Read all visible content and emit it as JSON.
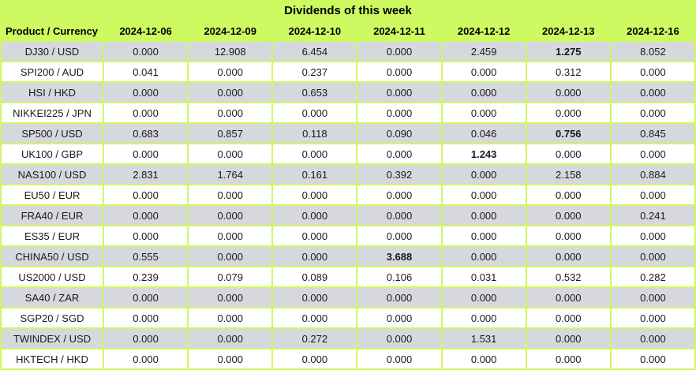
{
  "title": "Dividends of this week",
  "colors": {
    "table_green": "#cdf961",
    "row_gray": "#d7d7de",
    "row_white": "#ffffff",
    "text": "#1a1a1a"
  },
  "chart_data": {
    "type": "table",
    "title": "Dividends of this week",
    "columns": [
      "Product / Currency",
      "2024-12-06",
      "2024-12-09",
      "2024-12-10",
      "2024-12-11",
      "2024-12-12",
      "2024-12-13",
      "2024-12-16"
    ],
    "rows": [
      {
        "product": "DJ30 / USD",
        "values": [
          "0.000",
          "12.908",
          "6.454",
          "0.000",
          "2.459",
          "1.275",
          "8.052"
        ],
        "bold_value_indices": [
          5
        ]
      },
      {
        "product": "SPI200 / AUD",
        "values": [
          "0.041",
          "0.000",
          "0.237",
          "0.000",
          "0.000",
          "0.312",
          "0.000"
        ],
        "bold_value_indices": []
      },
      {
        "product": "HSI / HKD",
        "values": [
          "0.000",
          "0.000",
          "0.653",
          "0.000",
          "0.000",
          "0.000",
          "0.000"
        ],
        "bold_value_indices": []
      },
      {
        "product": "NIKKEI225 / JPN",
        "values": [
          "0.000",
          "0.000",
          "0.000",
          "0.000",
          "0.000",
          "0.000",
          "0.000"
        ],
        "bold_value_indices": []
      },
      {
        "product": "SP500 / USD",
        "values": [
          "0.683",
          "0.857",
          "0.118",
          "0.090",
          "0.046",
          "0.756",
          "0.845"
        ],
        "bold_value_indices": [
          5
        ]
      },
      {
        "product": "UK100 / GBP",
        "values": [
          "0.000",
          "0.000",
          "0.000",
          "0.000",
          "1.243",
          "0.000",
          "0.000"
        ],
        "bold_value_indices": [
          4
        ]
      },
      {
        "product": "NAS100 / USD",
        "values": [
          "2.831",
          "1.764",
          "0.161",
          "0.392",
          "0.000",
          "2.158",
          "0.884"
        ],
        "bold_value_indices": []
      },
      {
        "product": "EU50 / EUR",
        "values": [
          "0.000",
          "0.000",
          "0.000",
          "0.000",
          "0.000",
          "0.000",
          "0.000"
        ],
        "bold_value_indices": []
      },
      {
        "product": "FRA40 / EUR",
        "values": [
          "0.000",
          "0.000",
          "0.000",
          "0.000",
          "0.000",
          "0.000",
          "0.241"
        ],
        "bold_value_indices": []
      },
      {
        "product": "ES35 / EUR",
        "values": [
          "0.000",
          "0.000",
          "0.000",
          "0.000",
          "0.000",
          "0.000",
          "0.000"
        ],
        "bold_value_indices": []
      },
      {
        "product": "CHINA50 / USD",
        "values": [
          "0.555",
          "0.000",
          "0.000",
          "3.688",
          "0.000",
          "0.000",
          "0.000"
        ],
        "bold_value_indices": [
          3
        ]
      },
      {
        "product": "US2000 / USD",
        "values": [
          "0.239",
          "0.079",
          "0.089",
          "0.106",
          "0.031",
          "0.532",
          "0.282"
        ],
        "bold_value_indices": []
      },
      {
        "product": "SA40 / ZAR",
        "values": [
          "0.000",
          "0.000",
          "0.000",
          "0.000",
          "0.000",
          "0.000",
          "0.000"
        ],
        "bold_value_indices": []
      },
      {
        "product": "SGP20 / SGD",
        "values": [
          "0.000",
          "0.000",
          "0.000",
          "0.000",
          "0.000",
          "0.000",
          "0.000"
        ],
        "bold_value_indices": []
      },
      {
        "product": "TWINDEX / USD",
        "values": [
          "0.000",
          "0.000",
          "0.272",
          "0.000",
          "1.531",
          "0.000",
          "0.000"
        ],
        "bold_value_indices": []
      },
      {
        "product": "HKTECH / HKD",
        "values": [
          "0.000",
          "0.000",
          "0.000",
          "0.000",
          "0.000",
          "0.000",
          "0.000"
        ],
        "bold_value_indices": []
      }
    ]
  }
}
